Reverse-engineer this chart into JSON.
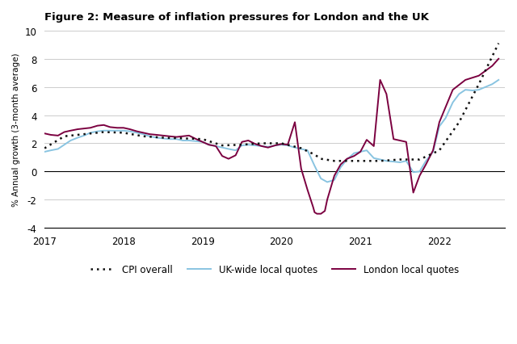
{
  "title": "Figure 2: Measure of inflation pressures for London and the UK",
  "ylabel": "% Annual growth (3-month average)",
  "ylim": [
    -4,
    10
  ],
  "yticks": [
    -4,
    -2,
    0,
    2,
    4,
    6,
    8,
    10
  ],
  "xlim": [
    2017.0,
    2022.83
  ],
  "xticks": [
    2017,
    2018,
    2019,
    2020,
    2021,
    2022
  ],
  "background_color": "#ffffff",
  "cpi_color": "#111111",
  "london_color": "#7b0040",
  "uk_color": "#89c4e1",
  "cpi_data": {
    "x": [
      2017.0,
      2017.25,
      2017.5,
      2017.75,
      2018.0,
      2018.25,
      2018.5,
      2018.75,
      2019.0,
      2019.25,
      2019.5,
      2019.75,
      2020.0,
      2020.25,
      2020.42,
      2020.5,
      2020.67,
      2020.75,
      2021.0,
      2021.25,
      2021.5,
      2021.75,
      2022.0,
      2022.25,
      2022.5,
      2022.75
    ],
    "y": [
      1.65,
      2.5,
      2.65,
      2.8,
      2.75,
      2.5,
      2.4,
      2.35,
      2.3,
      1.85,
      1.9,
      2.0,
      2.0,
      1.65,
      1.2,
      0.9,
      0.75,
      0.75,
      0.75,
      0.75,
      0.85,
      0.85,
      1.5,
      3.5,
      6.2,
      9.1
    ]
  },
  "london_data": {
    "x": [
      2017.0,
      2017.08,
      2017.17,
      2017.25,
      2017.33,
      2017.42,
      2017.5,
      2017.58,
      2017.67,
      2017.75,
      2017.83,
      2017.92,
      2018.0,
      2018.08,
      2018.17,
      2018.25,
      2018.33,
      2018.42,
      2018.5,
      2018.58,
      2018.67,
      2018.75,
      2018.83,
      2018.92,
      2019.0,
      2019.08,
      2019.17,
      2019.25,
      2019.33,
      2019.42,
      2019.5,
      2019.58,
      2019.67,
      2019.75,
      2019.83,
      2019.92,
      2020.0,
      2020.08,
      2020.17,
      2020.25,
      2020.33,
      2020.4,
      2020.42,
      2020.45,
      2020.5,
      2020.55,
      2020.58,
      2020.67,
      2020.75,
      2020.83,
      2020.92,
      2021.0,
      2021.08,
      2021.17,
      2021.25,
      2021.33,
      2021.42,
      2021.5,
      2021.58,
      2021.67,
      2021.75,
      2021.83,
      2021.92,
      2022.0,
      2022.17,
      2022.33,
      2022.5,
      2022.67,
      2022.75
    ],
    "y": [
      2.7,
      2.6,
      2.55,
      2.8,
      2.9,
      3.0,
      3.05,
      3.1,
      3.25,
      3.3,
      3.15,
      3.1,
      3.1,
      3.0,
      2.85,
      2.75,
      2.65,
      2.6,
      2.55,
      2.5,
      2.45,
      2.5,
      2.55,
      2.3,
      2.1,
      1.9,
      1.8,
      1.1,
      0.9,
      1.15,
      2.1,
      2.2,
      1.95,
      1.8,
      1.7,
      1.85,
      1.95,
      1.9,
      3.5,
      0.2,
      -1.3,
      -2.5,
      -2.9,
      -3.0,
      -3.0,
      -2.8,
      -2.0,
      -0.3,
      0.5,
      0.9,
      1.1,
      1.4,
      2.25,
      1.8,
      6.5,
      5.5,
      2.3,
      2.2,
      2.1,
      -1.5,
      -0.3,
      0.5,
      1.5,
      3.5,
      5.8,
      6.5,
      6.8,
      7.5,
      8.0
    ]
  },
  "uk_data": {
    "x": [
      2017.0,
      2017.08,
      2017.17,
      2017.25,
      2017.33,
      2017.42,
      2017.5,
      2017.58,
      2017.67,
      2017.75,
      2017.83,
      2017.92,
      2018.0,
      2018.08,
      2018.17,
      2018.25,
      2018.33,
      2018.42,
      2018.5,
      2018.58,
      2018.67,
      2018.75,
      2018.83,
      2018.92,
      2019.0,
      2019.08,
      2019.17,
      2019.25,
      2019.33,
      2019.42,
      2019.5,
      2019.58,
      2019.67,
      2019.75,
      2019.83,
      2019.92,
      2020.0,
      2020.08,
      2020.17,
      2020.25,
      2020.33,
      2020.42,
      2020.5,
      2020.58,
      2020.67,
      2020.75,
      2020.83,
      2020.92,
      2021.0,
      2021.08,
      2021.17,
      2021.25,
      2021.33,
      2021.42,
      2021.5,
      2021.58,
      2021.67,
      2021.75,
      2021.83,
      2021.92,
      2022.0,
      2022.08,
      2022.17,
      2022.25,
      2022.33,
      2022.42,
      2022.5,
      2022.67,
      2022.75
    ],
    "y": [
      1.4,
      1.5,
      1.6,
      1.9,
      2.2,
      2.4,
      2.55,
      2.75,
      2.85,
      2.9,
      2.9,
      2.9,
      2.9,
      2.85,
      2.75,
      2.65,
      2.5,
      2.4,
      2.35,
      2.3,
      2.3,
      2.2,
      2.2,
      2.15,
      2.1,
      1.9,
      1.8,
      1.7,
      1.6,
      1.5,
      1.85,
      1.9,
      1.85,
      1.8,
      1.75,
      1.85,
      1.9,
      1.85,
      1.7,
      1.6,
      1.5,
      0.4,
      -0.5,
      -0.75,
      -0.6,
      0.3,
      0.85,
      1.3,
      1.4,
      1.5,
      0.95,
      0.85,
      0.75,
      0.7,
      0.65,
      0.75,
      -0.05,
      0.0,
      0.75,
      1.4,
      3.2,
      3.8,
      4.9,
      5.5,
      5.8,
      5.75,
      5.8,
      6.2,
      6.5
    ]
  },
  "legend": {
    "cpi_label": "CPI overall",
    "london_label": "London local quotes",
    "uk_label": "UK-wide local quotes"
  }
}
